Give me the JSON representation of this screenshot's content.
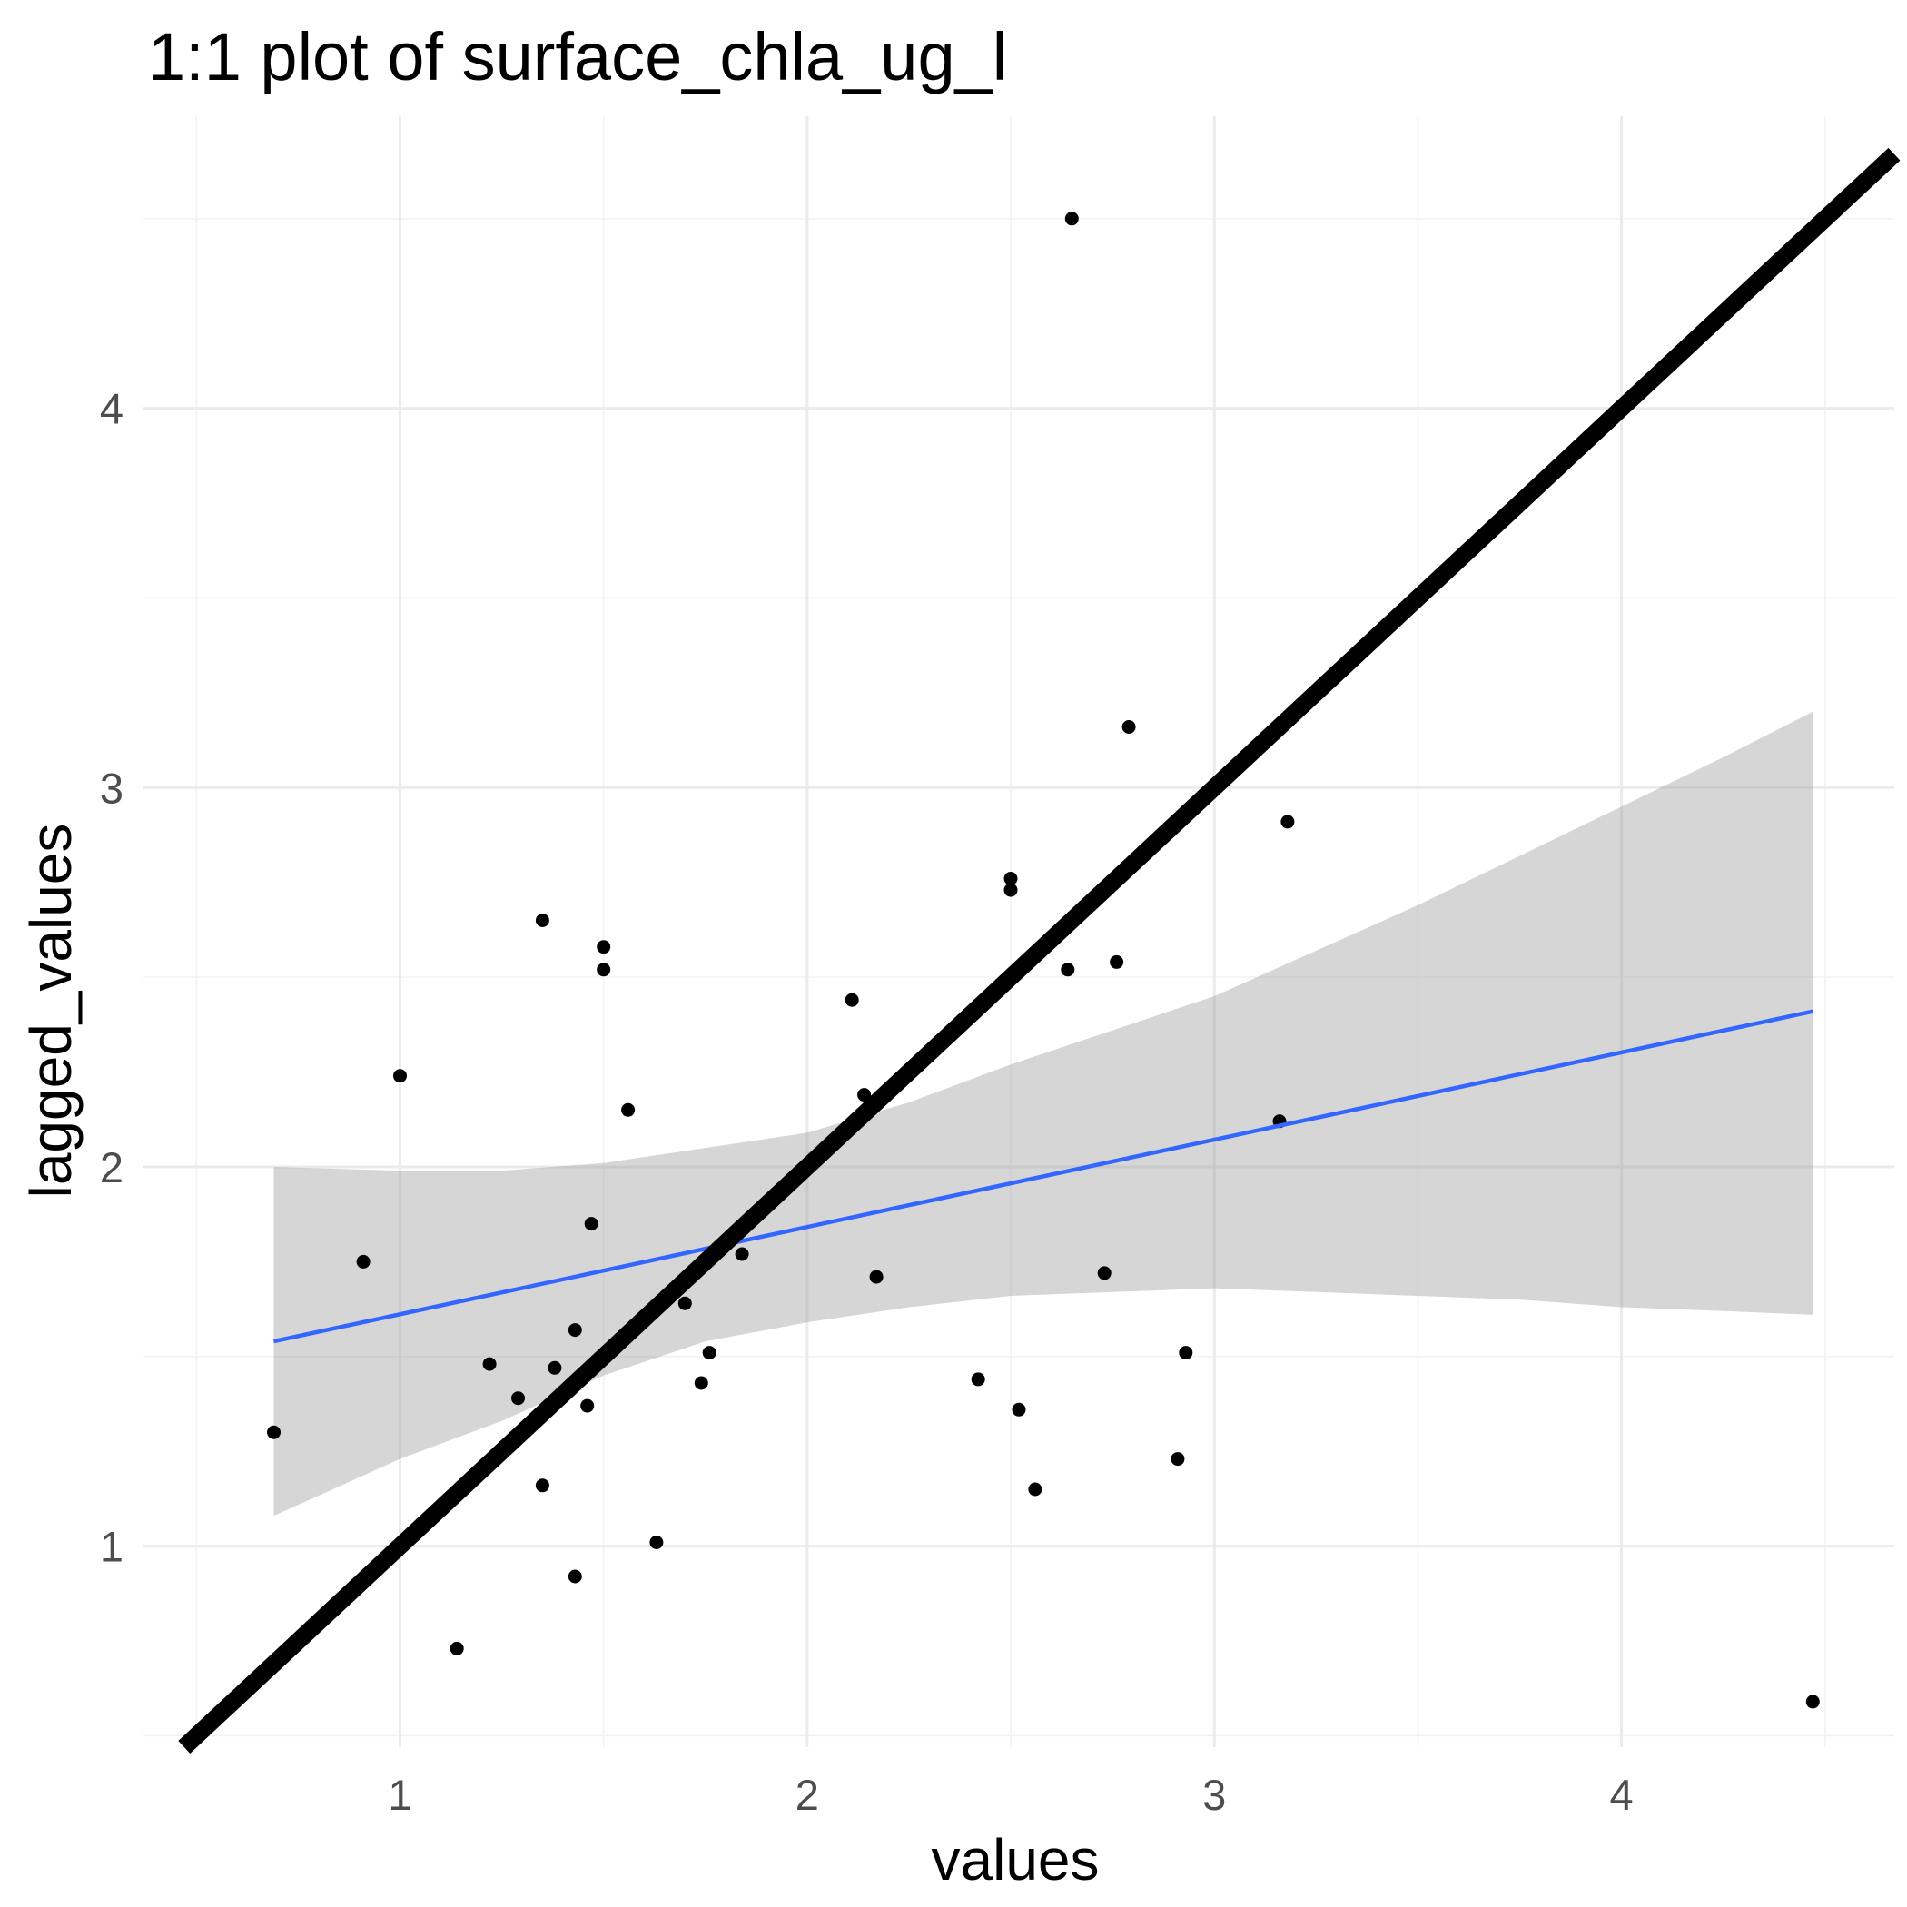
{
  "chart_data": {
    "type": "scatter",
    "title": "1:1 plot of surface_chla_ug_l",
    "xlabel": "values",
    "ylabel": "lagged_values",
    "xlim": [
      0.37,
      4.67
    ],
    "ylim": [
      0.47,
      4.77
    ],
    "x_ticks": [
      1,
      2,
      3,
      4
    ],
    "y_ticks": [
      1,
      2,
      3,
      4
    ],
    "x_tick_labels": [
      "1",
      "2",
      "3",
      "4"
    ],
    "y_tick_labels": [
      "1",
      "2",
      "3",
      "4"
    ],
    "grid": true,
    "points": [
      {
        "x": 0.69,
        "y": 1.3
      },
      {
        "x": 0.91,
        "y": 1.75
      },
      {
        "x": 1.0,
        "y": 2.24
      },
      {
        "x": 1.14,
        "y": 0.73
      },
      {
        "x": 1.22,
        "y": 1.48
      },
      {
        "x": 1.29,
        "y": 1.39
      },
      {
        "x": 1.35,
        "y": 2.65
      },
      {
        "x": 1.35,
        "y": 1.16
      },
      {
        "x": 1.38,
        "y": 1.47
      },
      {
        "x": 1.43,
        "y": 1.57
      },
      {
        "x": 1.43,
        "y": 0.92
      },
      {
        "x": 1.46,
        "y": 1.37
      },
      {
        "x": 1.47,
        "y": 1.85
      },
      {
        "x": 1.5,
        "y": 2.58
      },
      {
        "x": 1.5,
        "y": 2.52
      },
      {
        "x": 1.56,
        "y": 2.15
      },
      {
        "x": 1.63,
        "y": 1.01
      },
      {
        "x": 1.7,
        "y": 1.64
      },
      {
        "x": 1.74,
        "y": 1.43
      },
      {
        "x": 1.76,
        "y": 1.51
      },
      {
        "x": 1.84,
        "y": 1.77
      },
      {
        "x": 2.11,
        "y": 2.44
      },
      {
        "x": 2.14,
        "y": 2.19
      },
      {
        "x": 2.17,
        "y": 1.71
      },
      {
        "x": 2.42,
        "y": 1.44
      },
      {
        "x": 2.5,
        "y": 2.76
      },
      {
        "x": 2.5,
        "y": 2.73
      },
      {
        "x": 2.52,
        "y": 1.36
      },
      {
        "x": 2.56,
        "y": 1.15
      },
      {
        "x": 2.64,
        "y": 2.52
      },
      {
        "x": 2.65,
        "y": 4.5
      },
      {
        "x": 2.73,
        "y": 1.72
      },
      {
        "x": 2.76,
        "y": 2.54
      },
      {
        "x": 2.79,
        "y": 3.16
      },
      {
        "x": 2.91,
        "y": 1.23
      },
      {
        "x": 2.93,
        "y": 1.51
      },
      {
        "x": 3.16,
        "y": 2.12
      },
      {
        "x": 3.18,
        "y": 2.91
      },
      {
        "x": 4.47,
        "y": 0.59
      }
    ],
    "identity_line": {
      "color": "#000000"
    },
    "regression": {
      "color": "#3366ff",
      "x": [
        0.69,
        4.47
      ],
      "y": [
        1.54,
        2.41
      ],
      "band": {
        "color": "#999999",
        "x": [
          0.69,
          1.0,
          1.25,
          1.5,
          1.75,
          2.0,
          2.25,
          2.5,
          2.75,
          3.0,
          3.25,
          3.5,
          3.75,
          4.0,
          4.25,
          4.47
        ],
        "lower": [
          1.08,
          1.23,
          1.33,
          1.45,
          1.54,
          1.59,
          1.63,
          1.66,
          1.67,
          1.68,
          1.67,
          1.66,
          1.65,
          1.63,
          1.62,
          1.61
        ],
        "upper": [
          2.0,
          1.99,
          1.99,
          2.01,
          2.05,
          2.09,
          2.17,
          2.27,
          2.36,
          2.45,
          2.57,
          2.69,
          2.82,
          2.95,
          3.08,
          3.2
        ]
      }
    }
  }
}
